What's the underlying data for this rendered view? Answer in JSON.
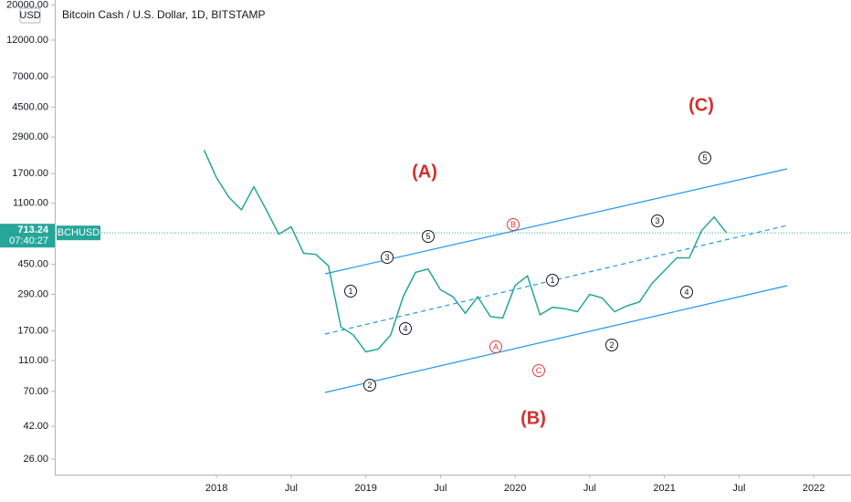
{
  "chart_data": {
    "type": "line",
    "title": "Bitcoin Cash / U.S. Dollar, 1D, BITSTAMP",
    "currency": "USD",
    "symbol": "BCHUSD",
    "last_price": 713.24,
    "last_price_label": "713.24",
    "countdown": "07:40:27",
    "log_scale": true,
    "color": "#26a69a",
    "x": [
      "2017-12",
      "2018-01",
      "2018-02",
      "2018-03",
      "2018-04",
      "2018-05",
      "2018-06",
      "2018-07",
      "2018-08",
      "2018-09",
      "2018-10",
      "2018-11",
      "2018-12",
      "2019-01",
      "2019-02",
      "2019-03",
      "2019-04",
      "2019-05",
      "2019-06",
      "2019-07",
      "2019-08",
      "2019-09",
      "2019-10",
      "2019-11",
      "2019-12",
      "2020-01",
      "2020-02",
      "2020-03",
      "2020-04",
      "2020-05",
      "2020-06",
      "2020-07",
      "2020-08",
      "2020-09",
      "2020-10",
      "2020-11",
      "2020-12",
      "2021-01",
      "2021-02",
      "2021-03",
      "2021-04",
      "2021-05",
      "2021-06"
    ],
    "values": [
      2400,
      1600,
      1200,
      1000,
      1400,
      1000,
      700,
      780,
      530,
      520,
      440,
      180,
      160,
      125,
      130,
      160,
      280,
      400,
      420,
      310,
      280,
      220,
      280,
      210,
      205,
      330,
      380,
      215,
      240,
      235,
      225,
      290,
      275,
      225,
      245,
      260,
      340,
      410,
      495,
      495,
      740,
      900,
      713.24
    ],
    "xlim": [
      "2016-12",
      "2022-04"
    ],
    "xticks": [
      {
        "value": "2018-01",
        "label": "2018"
      },
      {
        "value": "2018-07",
        "label": "Jul"
      },
      {
        "value": "2019-01",
        "label": "2019"
      },
      {
        "value": "2019-07",
        "label": "Jul"
      },
      {
        "value": "2020-01",
        "label": "2020"
      },
      {
        "value": "2020-07",
        "label": "Jul"
      },
      {
        "value": "2021-01",
        "label": "2021"
      },
      {
        "value": "2021-07",
        "label": "Jul"
      },
      {
        "value": "2022-01",
        "label": "2022"
      }
    ],
    "ylim": [
      20.7,
      21600
    ],
    "yticks": [
      {
        "value": 20000,
        "label": "20000.00"
      },
      {
        "value": 12000,
        "label": "12000.00"
      },
      {
        "value": 7000,
        "label": "7000.00"
      },
      {
        "value": 4500,
        "label": "4500.00"
      },
      {
        "value": 2900,
        "label": "2900.00"
      },
      {
        "value": 1700,
        "label": "1700.00"
      },
      {
        "value": 1100,
        "label": "1100.00"
      },
      {
        "value": 450,
        "label": "450.00"
      },
      {
        "value": 290,
        "label": "290.00"
      },
      {
        "value": 170,
        "label": "170.00"
      },
      {
        "value": 110,
        "label": "110.00"
      },
      {
        "value": 70,
        "label": "70.00"
      },
      {
        "value": 42,
        "label": "42.00"
      },
      {
        "value": 26,
        "label": "26.00"
      }
    ],
    "annotations": [
      "(A)",
      "(B)",
      "(C)",
      "1",
      "2",
      "3",
      "4",
      "5",
      "1",
      "2",
      "3",
      "4",
      "5",
      "A",
      "B",
      "C"
    ]
  }
}
